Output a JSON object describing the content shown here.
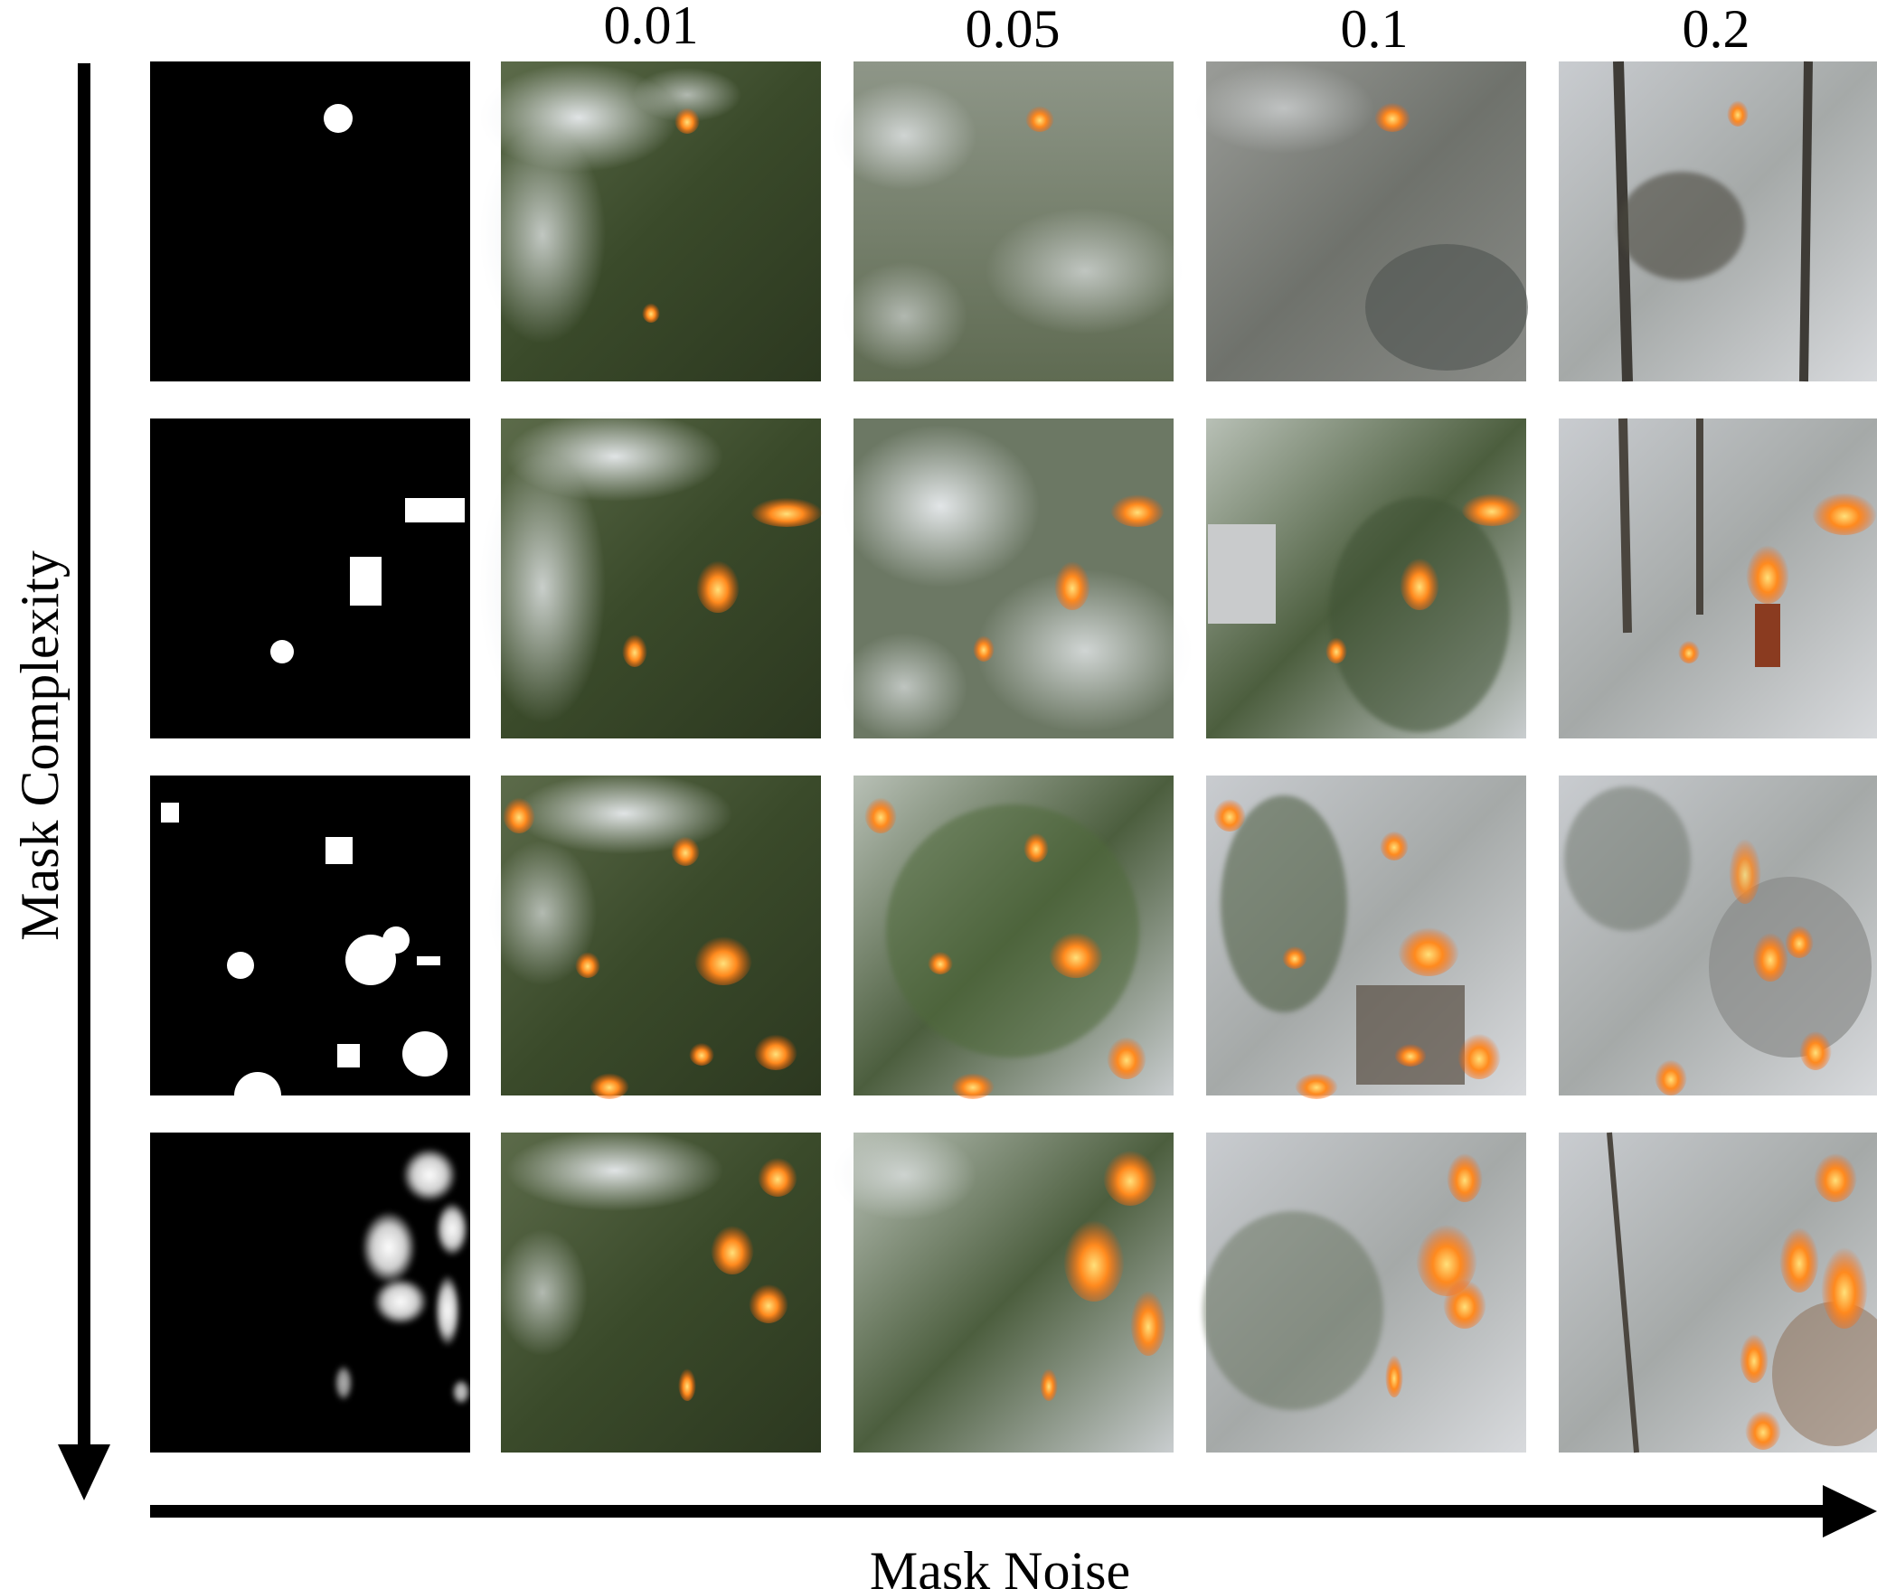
{
  "figure": {
    "column_labels": [
      "0.01",
      "0.05",
      "0.1",
      "0.2"
    ],
    "x_axis_label": "Mask Noise",
    "y_axis_label": "Mask Complexity",
    "rows": [
      {
        "mask": "mask-single-circle",
        "images": [
          "aerial-forest-fire-smoke",
          "misty-forest-fire",
          "snowy-forest-fire",
          "snowy-tree-fire"
        ]
      },
      {
        "mask": "mask-circle-two-rectangles",
        "images": [
          "aerial-forest-fire-smoke",
          "smoky-pine-fire",
          "snowy-pine-cabin-fire",
          "snowy-forest-flare-fire"
        ]
      },
      {
        "mask": "mask-many-circles-squares",
        "images": [
          "aerial-forest-multi-fire",
          "snowy-pine-branches-fire",
          "snowy-woodpile-fire",
          "snowy-rocks-fire"
        ]
      },
      {
        "mask": "mask-noisy-blobs",
        "images": [
          "aerial-forest-scattered-fire",
          "snowy-shrub-fire",
          "snowy-bush-fire",
          "snowy-branch-fire"
        ]
      }
    ]
  },
  "colors": {
    "background": "#ffffff",
    "axis": "#000000",
    "mask_bg": "#000000",
    "mask_fg": "#ffffff",
    "forest_dark": "#2e3a24",
    "forest_green": "#44562f",
    "smoke": "#d9dde1",
    "snow": "#eef0f2",
    "fire": "#ff7a1a",
    "fire_core": "#ffd24a"
  }
}
